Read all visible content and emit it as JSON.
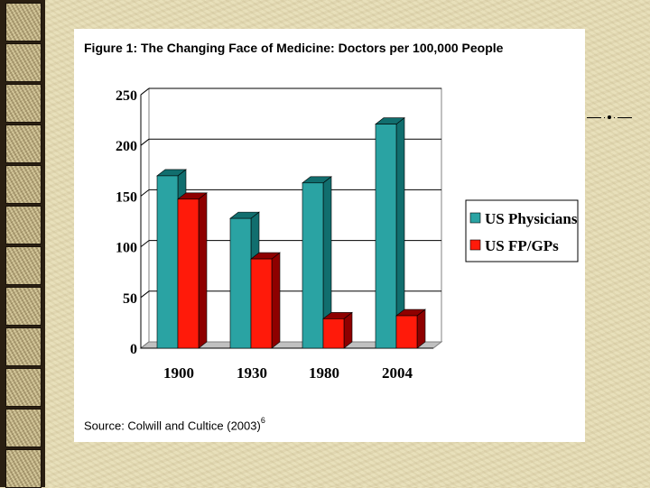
{
  "slide": {
    "source_text": "Source: Colwill and Cultice (2003)",
    "source_superscript": "6"
  },
  "chart_data": {
    "type": "bar",
    "title": "Figure 1:  The Changing Face of Medicine:  Doctors per 100,000 People",
    "categories": [
      "1900",
      "1930",
      "1980",
      "2004"
    ],
    "series": [
      {
        "name": "US Physicians",
        "values": [
          170,
          128,
          163,
          221
        ],
        "color": "#2aa3a3",
        "dark_color": "#116e6e"
      },
      {
        "name": "US FP/GPs",
        "values": [
          147,
          88,
          29,
          32
        ],
        "color": "#ff1a0a",
        "dark_color": "#8e0000"
      }
    ],
    "ylim": [
      0,
      250
    ],
    "yticks": [
      "0",
      "50",
      "100",
      "150",
      "200",
      "250"
    ],
    "xlabel": "",
    "ylabel": "",
    "grid": true,
    "legend_position": "right",
    "style": "3d-bar"
  }
}
